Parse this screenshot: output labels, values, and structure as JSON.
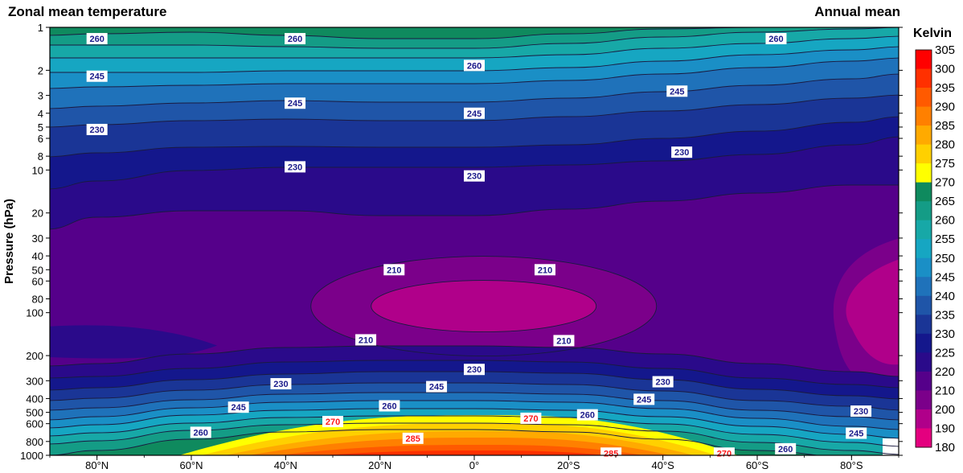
{
  "chart_data": {
    "type": "contour",
    "title_left": "Zonal mean temperature",
    "title_right": "Annual mean",
    "ylabel": "Pressure (hPa)",
    "y_scale": "log",
    "ylim": [
      1000,
      1
    ],
    "y_ticks": [
      1,
      2,
      3,
      4,
      5,
      6,
      8,
      10,
      20,
      30,
      40,
      50,
      60,
      80,
      100,
      200,
      300,
      400,
      500,
      600,
      800,
      1000
    ],
    "x_ticks": [
      "80°N",
      "60°N",
      "40°N",
      "20°N",
      "0°",
      "20°S",
      "40°S",
      "60°S",
      "80°S"
    ],
    "x_tick_values": [
      80,
      60,
      40,
      20,
      0,
      -20,
      -40,
      -60,
      -80
    ],
    "xlim": [
      90,
      -90
    ],
    "colorbar_label": "Kelvin",
    "levels": [
      180,
      190,
      200,
      210,
      220,
      225,
      230,
      235,
      240,
      245,
      250,
      255,
      260,
      265,
      270,
      275,
      280,
      285,
      290,
      295,
      300,
      305
    ],
    "colors": [
      "#ff1493",
      "#e4007f",
      "#b0008a",
      "#7b008a",
      "#55008a",
      "#2a0a8a",
      "#14178c",
      "#1a3596",
      "#1f55a8",
      "#1f72ba",
      "#1a8fc6",
      "#16a6c2",
      "#17a8a7",
      "#149c86",
      "#0f8a5e",
      "#ffff00",
      "#ffd000",
      "#ffaa00",
      "#ff8000",
      "#ff5a00",
      "#ff3000",
      "#ff0000"
    ],
    "contour_labels": [
      {
        "text": "260",
        "lat": 80,
        "p": 1.2,
        "warm": false
      },
      {
        "text": "260",
        "lat": 38,
        "p": 1.2,
        "warm": false
      },
      {
        "text": "260",
        "lat": 0,
        "p": 1.85,
        "warm": false
      },
      {
        "text": "260",
        "lat": -64,
        "p": 1.2,
        "warm": false
      },
      {
        "text": "245",
        "lat": 80,
        "p": 2.2,
        "warm": false
      },
      {
        "text": "245",
        "lat": 38,
        "p": 3.4,
        "warm": false
      },
      {
        "text": "245",
        "lat": 0,
        "p": 4.0,
        "warm": false
      },
      {
        "text": "245",
        "lat": -43,
        "p": 2.8,
        "warm": false
      },
      {
        "text": "230",
        "lat": 80,
        "p": 5.2,
        "warm": false
      },
      {
        "text": "230",
        "lat": 38,
        "p": 9.5,
        "warm": false
      },
      {
        "text": "230",
        "lat": 0,
        "p": 11,
        "warm": false
      },
      {
        "text": "230",
        "lat": -44,
        "p": 7.5,
        "warm": false
      },
      {
        "text": "210",
        "lat": 17,
        "p": 50,
        "warm": false
      },
      {
        "text": "210",
        "lat": -15,
        "p": 50,
        "warm": false
      },
      {
        "text": "210",
        "lat": 23,
        "p": 155,
        "warm": false
      },
      {
        "text": "210",
        "lat": -19,
        "p": 157,
        "warm": false
      },
      {
        "text": "230",
        "lat": 0,
        "p": 250,
        "warm": false
      },
      {
        "text": "230",
        "lat": 41,
        "p": 315,
        "warm": false
      },
      {
        "text": "230",
        "lat": -40,
        "p": 305,
        "warm": false
      },
      {
        "text": "230",
        "lat": -82,
        "p": 490,
        "warm": false
      },
      {
        "text": "245",
        "lat": 8,
        "p": 330,
        "warm": false
      },
      {
        "text": "245",
        "lat": 50,
        "p": 460,
        "warm": false
      },
      {
        "text": "245",
        "lat": -36,
        "p": 405,
        "warm": false
      },
      {
        "text": "245",
        "lat": -81,
        "p": 700,
        "warm": false
      },
      {
        "text": "260",
        "lat": 18,
        "p": 450,
        "warm": false
      },
      {
        "text": "260",
        "lat": 58,
        "p": 690,
        "warm": false
      },
      {
        "text": "260",
        "lat": -24,
        "p": 520,
        "warm": false
      },
      {
        "text": "260",
        "lat": -66,
        "p": 900,
        "warm": false
      },
      {
        "text": "270",
        "lat": 30,
        "p": 580,
        "warm": true
      },
      {
        "text": "270",
        "lat": -12,
        "p": 550,
        "warm": true
      },
      {
        "text": "270",
        "lat": -53,
        "p": 965,
        "warm": true
      },
      {
        "text": "285",
        "lat": 13,
        "p": 760,
        "warm": true
      },
      {
        "text": "285",
        "lat": -29,
        "p": 965,
        "warm": true
      }
    ]
  }
}
